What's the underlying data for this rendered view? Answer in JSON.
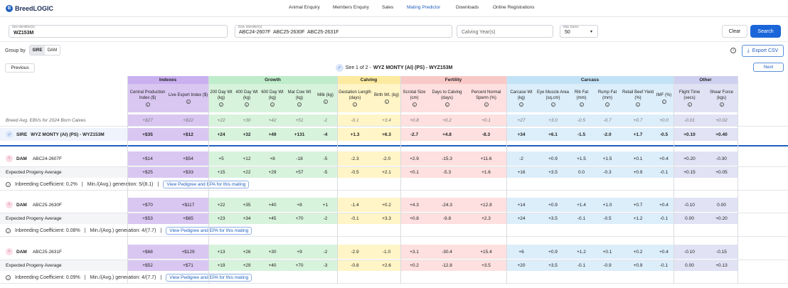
{
  "brand": {
    "name": "BreedLOGIC",
    "mark": "B"
  },
  "nav": [
    "Animal Enquiry",
    "Members Enquiry",
    "Sales",
    "Mating Predictor",
    "Downloads",
    "Online Registrations"
  ],
  "filters": {
    "sire_label": "Sire Identifier(s)",
    "sire_value": "WZ153M",
    "dam_label": "Dam Identifier(s)",
    "dams": [
      "ABC24-2607F",
      "ABC25-2630F",
      "ABC25-2631F"
    ],
    "calving_placeholder": "Calving Year(s)",
    "maxdams_label": "Max Dams",
    "maxdams_value": "50"
  },
  "buttons": {
    "clear": "Clear",
    "search": "Search",
    "export": "Export CSV",
    "previous": "Previous",
    "next": "Next"
  },
  "groupby": {
    "label": "Group by",
    "options": [
      "SIRE",
      "DAM"
    ],
    "selected": "SIRE"
  },
  "sirebar": {
    "prefix": "Sire 1 of 2 -",
    "name": "WYZ MONTY (AI) (PS) - WYZ153M"
  },
  "groups": [
    "Indexes",
    "Growth",
    "Calving",
    "Fertility",
    "Carcass",
    "Other"
  ],
  "columns": [
    "Central Production Index ($)",
    "Live Export Index ($)",
    "200 Day Wt (kg)",
    "400 Day Wt (kg)",
    "600 Day Wt (kg)",
    "Mat Cow Wt (kg)",
    "Milk (kg)",
    "Gestation Length (days)",
    "Birth Wt. (kg)",
    "Scrotal Size (cm)",
    "Days to Calving (days)",
    "Percent Normal Sperm (%)",
    "Carcase Wt (kg)",
    "Eye Muscle Area (sq.cm)",
    "Rib Fat (mm)",
    "Rump Fat (mm)",
    "Retail Beef Yield (%)",
    "IMF (%)",
    "Flight Time (secs)",
    "Shear Force (kgs)"
  ],
  "breed_avg": {
    "label": "Breed Avg. EBVs for 2024 Born Calves",
    "values": [
      "+$27",
      "+$22",
      "+22",
      "+30",
      "+42",
      "+51",
      "-1",
      "-0.1",
      "+3.4",
      "+0.8",
      "+0.2",
      "+0.1",
      "+27",
      "+3.0",
      "-0.5",
      "-0.7",
      "+0.7",
      "+0.0",
      "-0.01",
      "+0.02"
    ]
  },
  "sire": {
    "label": "SIRE",
    "name": "WYZ MONTY (AI) (PS) - WYZ153M",
    "values": [
      "+$35",
      "+$12",
      "+24",
      "+32",
      "+49",
      "+131",
      "-4",
      "+1.3",
      "+6.3",
      "-2.7",
      "+4.8",
      "-8.3",
      "+34",
      "+6.1",
      "-1.5",
      "-2.0",
      "+1.7",
      "-0.5",
      "+0.10",
      "+0.40"
    ]
  },
  "dams": [
    {
      "label": "DAM",
      "id": "ABC24-2607F",
      "values": [
        "+$14",
        "+$54",
        "+5",
        "+12",
        "+8",
        "-18",
        "-5",
        "-2.3",
        "-2.0",
        "+2.9",
        "-15.3",
        "+11.6",
        "-2",
        "+0.9",
        "+1.5",
        "+1.5",
        "+0.1",
        "+0.4",
        "+0.20",
        "-0.30"
      ],
      "epa_label": "Expected Progeny Average",
      "epa": [
        "+$25",
        "+$33",
        "+15",
        "+22",
        "+29",
        "+57",
        "-5",
        "-0.5",
        "+2.1",
        "+0.1",
        "-5.3",
        "+1.6",
        "+16",
        "+3.5",
        "0.0",
        "-0.3",
        "+0.9",
        "-0.1",
        "+0.15",
        "+0.05"
      ],
      "inbreeding": "Inbreeding Coefficient: 0.2%",
      "generation": "Min./(Avg.) generation: 5/(8.1)",
      "link": "View Pedigree and EPA for this mating"
    },
    {
      "label": "DAM",
      "id": "ABC25-2630F",
      "values": [
        "+$70",
        "+$117",
        "+22",
        "+35",
        "+40",
        "+8",
        "+1",
        "-1.4",
        "+0.2",
        "+4.3",
        "-24.3",
        "+12.8",
        "+14",
        "+0.9",
        "+1.4",
        "+1.0",
        "+0.7",
        "+0.4",
        "-0.10",
        "0.00"
      ],
      "epa_label": "Expected Progeny Average",
      "epa": [
        "+$53",
        "+$65",
        "+23",
        "+34",
        "+45",
        "+70",
        "-2",
        "-0.1",
        "+3.3",
        "+0.8",
        "-9.8",
        "+2.3",
        "+24",
        "+3.5",
        "-0.1",
        "-0.5",
        "+1.2",
        "-0.1",
        "0.00",
        "+0.20"
      ],
      "inbreeding": "Inbreeding Coefficient: 0.08%",
      "generation": "Min./(Avg.) generation: 4/(7.7)",
      "link": "View Pedigree and EPA for this mating"
    },
    {
      "label": "DAM",
      "id": "ABC25-2631F",
      "values": [
        "+$68",
        "+$129",
        "+13",
        "+26",
        "+30",
        "+9",
        "-2",
        "-2.9",
        "-1.0",
        "+3.1",
        "-30.4",
        "+15.4",
        "+6",
        "+0.9",
        "+1.2",
        "+0.1",
        "+0.2",
        "+0.4",
        "-0.10",
        "-0.15"
      ],
      "epa_label": "Expected Progeny Average",
      "epa": [
        "+$52",
        "+$71",
        "+19",
        "+29",
        "+40",
        "+70",
        "-3",
        "-0.8",
        "+2.6",
        "+0.2",
        "-12.8",
        "+3.5",
        "+20",
        "+3.5",
        "-0.1",
        "-0.9",
        "+0.9",
        "-0.1",
        "0.00",
        "+0.13"
      ],
      "inbreeding": "Inbreeding Coefficient: 0.09%",
      "generation": "Min./(Avg.) generation: 4/(7.7)",
      "link": "View Pedigree and EPA for this mating"
    }
  ],
  "colors": {
    "indexes": "#d9c7f2",
    "indexes_hd": "#c9b0ef",
    "growth": "#d8f3dc",
    "growth_hd": "#bfeccb",
    "calving": "#fff5c7",
    "calving_hd": "#fbeaa0",
    "fertility": "#fde0df",
    "fertility_hd": "#f8c9c6",
    "carcass": "#dceefa",
    "carcass_hd": "#c2e2f6",
    "other": "#e2e2f5",
    "other_hd": "#cfd0ef",
    "accent": "#1f5fbf"
  }
}
